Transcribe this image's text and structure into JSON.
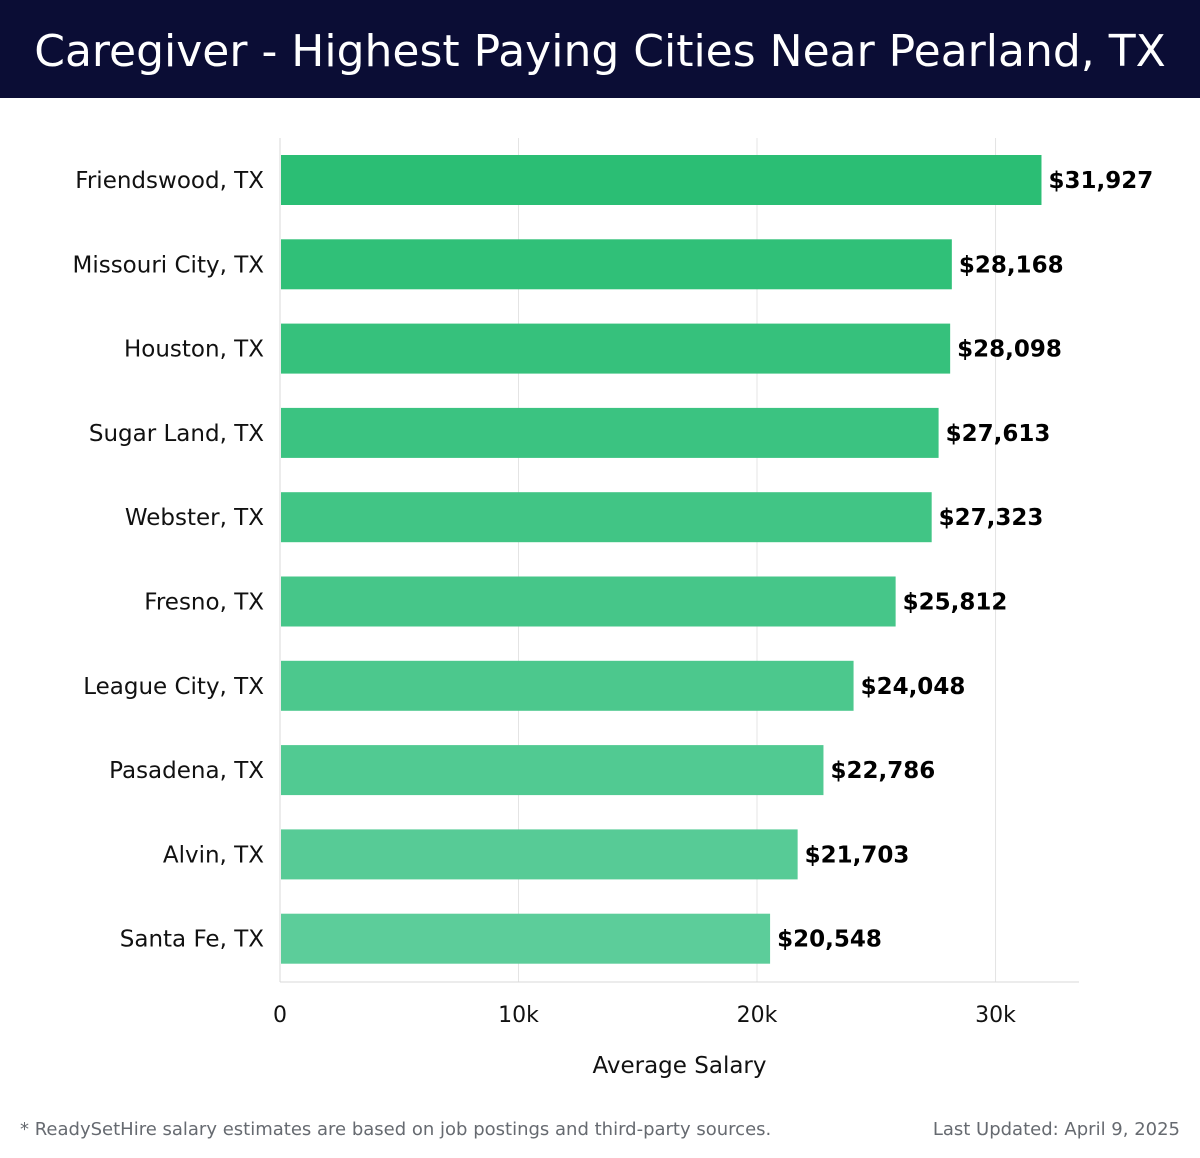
{
  "header": {
    "title": "Caregiver - Highest Paying Cities Near Pearland, TX"
  },
  "chart_data": {
    "type": "bar",
    "orientation": "horizontal",
    "title": "Caregiver - Highest Paying Cities Near Pearland, TX",
    "xlabel": "Average Salary",
    "ylabel": "",
    "xlim": [
      0,
      33500
    ],
    "ticks": [
      0,
      10000,
      20000,
      30000
    ],
    "tick_labels": [
      "0",
      "10k",
      "20k",
      "30k"
    ],
    "grid": true,
    "categories": [
      "Friendswood, TX",
      "Missouri City, TX",
      "Houston, TX",
      "Sugar Land, TX",
      "Webster, TX",
      "Fresno, TX",
      "League City, TX",
      "Pasadena, TX",
      "Alvin, TX",
      "Santa Fe, TX"
    ],
    "values": [
      31927,
      28168,
      28098,
      27613,
      27323,
      25812,
      24048,
      22786,
      21703,
      20548
    ],
    "value_labels": [
      "$31,927",
      "$28,168",
      "$28,098",
      "$27,613",
      "$27,323",
      "$25,812",
      "$24,048",
      "$22,786",
      "$21,703",
      "$20,548"
    ],
    "colors": {
      "bar_top": "#2bbe74",
      "bar_bottom": "#5ccd9a"
    }
  },
  "footer": {
    "note": "* ReadySetHire salary estimates are based on job postings and third-party sources.",
    "updated": "Last Updated: April 9, 2025"
  },
  "colors": {
    "header_bg": "#0b0d35",
    "text": "#111111",
    "muted": "#666a70"
  }
}
